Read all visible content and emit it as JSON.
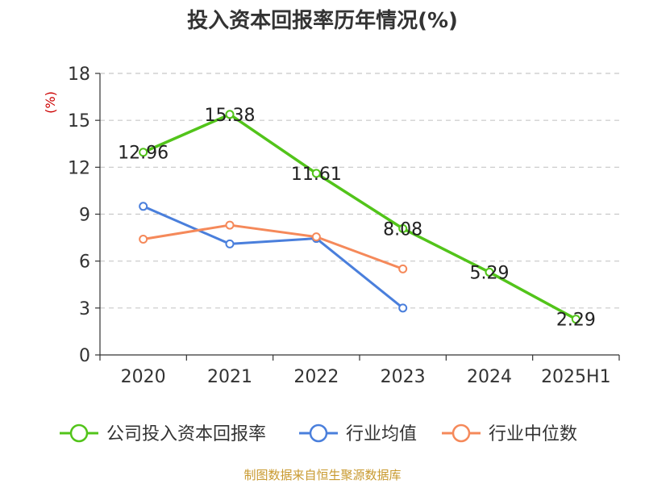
{
  "chart_data": {
    "type": "line",
    "title": "投入资本回报率历年情况(%)",
    "y_unit": "(%)",
    "categories": [
      "2020",
      "2021",
      "2022",
      "2023",
      "2024",
      "2025H1"
    ],
    "ylim": [
      0,
      18
    ],
    "yticks": [
      0,
      3,
      6,
      9,
      12,
      15,
      18
    ],
    "grid": true,
    "legend_position": "bottom",
    "series": [
      {
        "name": "公司投入资本回报率",
        "color": "#52c41a",
        "values": [
          12.96,
          15.38,
          11.61,
          8.08,
          5.29,
          2.29
        ],
        "labels": [
          "12.96",
          "15.38",
          "11.61",
          "8.08",
          "5.29",
          "2.29"
        ]
      },
      {
        "name": "行业均值",
        "color": "#4a7fdc",
        "values": [
          9.5,
          7.1,
          7.45,
          3.0,
          null,
          null
        ]
      },
      {
        "name": "行业中位数",
        "color": "#f5895a",
        "values": [
          7.4,
          8.3,
          7.55,
          5.5,
          null,
          null
        ]
      }
    ]
  },
  "source": "制图数据来自恒生聚源数据库"
}
